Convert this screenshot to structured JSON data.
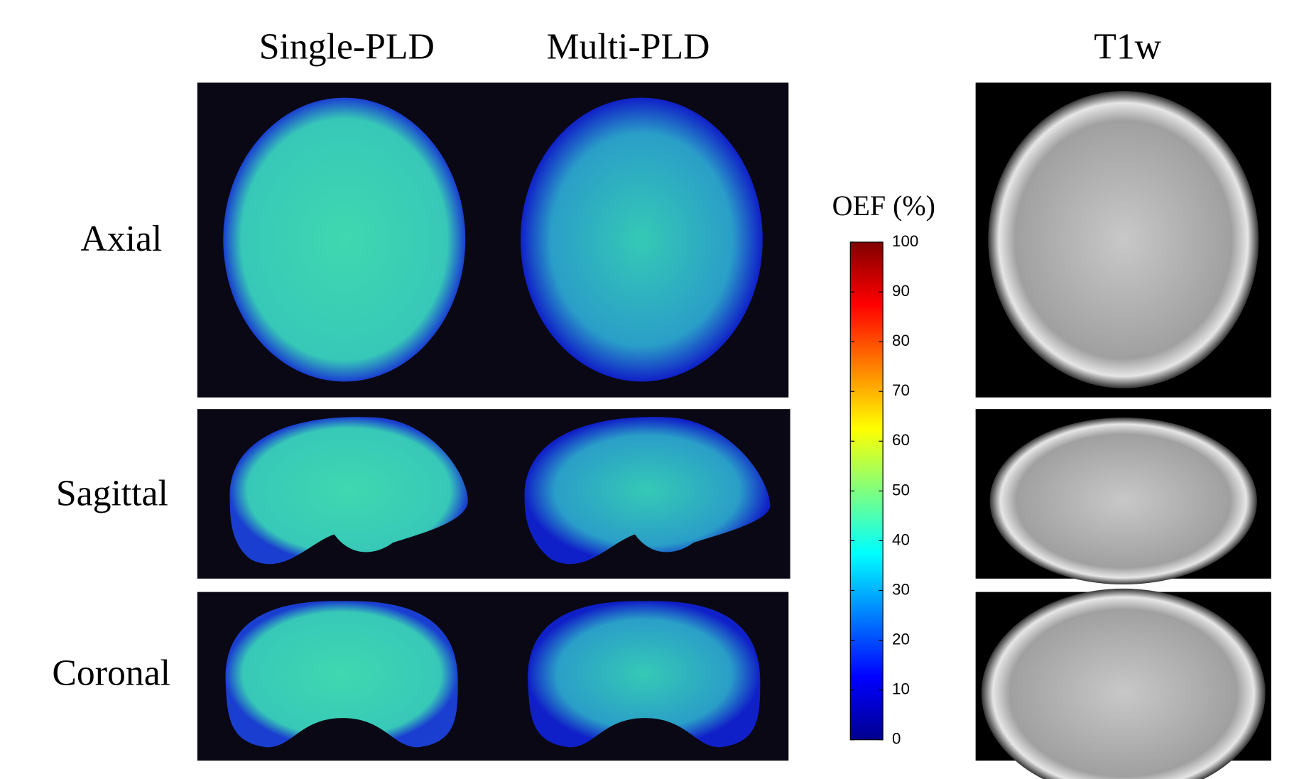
{
  "columns": [
    "Single-PLD",
    "Multi-PLD",
    "T1w"
  ],
  "rows": [
    "Axial",
    "Sagittal",
    "Coronal"
  ],
  "colorbar": {
    "title": "OEF (%)",
    "lim": [
      0,
      100
    ],
    "ticks": [
      0,
      10,
      20,
      30,
      40,
      50,
      60,
      70,
      80,
      90,
      100
    ]
  }
}
